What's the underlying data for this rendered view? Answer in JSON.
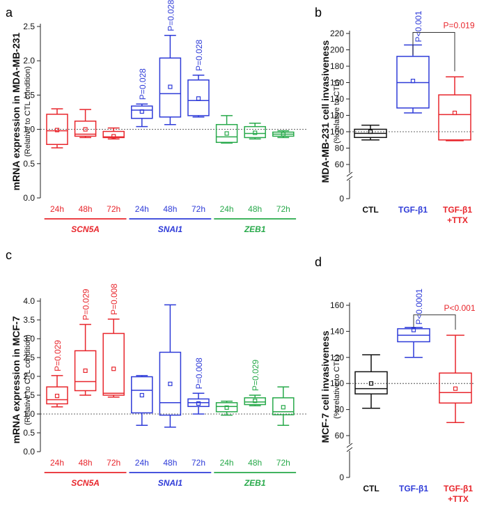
{
  "colors": {
    "red": "#e8262c",
    "blue": "#2e3bd8",
    "green": "#27a94a",
    "black": "#111111",
    "axis": "#222222"
  },
  "chart_data": [
    {
      "panel": "a",
      "type": "box",
      "ylabel": "mRNA expression in MDA-MB-231",
      "ylabel_sub": "(Relative to CTL condition)",
      "ylim": [
        0,
        2.5
      ],
      "yticks": [
        "0.0",
        "0.5",
        "1.0",
        "1.5",
        "2.0",
        "2.5"
      ],
      "ref_line": 1.0,
      "categories": [
        "24h",
        "48h",
        "72h",
        "24h",
        "48h",
        "72h",
        "24h",
        "48h",
        "72h"
      ],
      "groups": [
        {
          "name": "SCN5A",
          "color": "red"
        },
        {
          "name": "SNAI1",
          "color": "blue"
        },
        {
          "name": "ZEB1",
          "color": "green"
        }
      ],
      "boxes": [
        {
          "group": 0,
          "min": 0.73,
          "q1": 0.78,
          "median": 0.98,
          "q3": 1.22,
          "max": 1.3,
          "mean": 0.99
        },
        {
          "group": 0,
          "min": 0.88,
          "q1": 0.9,
          "median": 0.93,
          "q3": 1.12,
          "max": 1.29,
          "mean": 1.0
        },
        {
          "group": 0,
          "min": 0.86,
          "q1": 0.88,
          "median": 0.89,
          "q3": 0.97,
          "max": 1.02,
          "mean": 0.9
        },
        {
          "group": 1,
          "min": 1.04,
          "q1": 1.16,
          "median": 1.28,
          "q3": 1.34,
          "max": 1.37,
          "mean": 1.26,
          "p": "P=0.028"
        },
        {
          "group": 1,
          "min": 1.07,
          "q1": 1.18,
          "median": 1.52,
          "q3": 2.04,
          "max": 2.37,
          "mean": 1.62,
          "p": "P=0.028"
        },
        {
          "group": 1,
          "min": 1.18,
          "q1": 1.2,
          "median": 1.42,
          "q3": 1.72,
          "max": 1.79,
          "mean": 1.45,
          "p": "P=0.028"
        },
        {
          "group": 2,
          "min": 0.8,
          "q1": 0.81,
          "median": 0.89,
          "q3": 1.07,
          "max": 1.2,
          "mean": 0.94
        },
        {
          "group": 2,
          "min": 0.86,
          "q1": 0.88,
          "median": 0.94,
          "q3": 1.04,
          "max": 1.09,
          "mean": 0.95
        },
        {
          "group": 2,
          "min": 0.88,
          "q1": 0.9,
          "median": 0.93,
          "q3": 0.96,
          "max": 0.98,
          "mean": 0.93
        }
      ]
    },
    {
      "panel": "b",
      "type": "box",
      "ylabel": "MDA-MB-231 cell invasiveness",
      "ylabel_sub": "(% relative to CTL)",
      "yticks_upper": [
        "60",
        "80",
        "100",
        "120",
        "140",
        "160",
        "180",
        "200",
        "220"
      ],
      "ytick_zero": "0",
      "ref_line": 100,
      "categories": [
        "CTL",
        "TGF-β1",
        "TGF-β1",
        "+TTX"
      ],
      "boxes": [
        {
          "color": "black",
          "min": 90,
          "q1": 93,
          "median": 98,
          "q3": 103,
          "max": 108,
          "mean": 100
        },
        {
          "color": "blue",
          "min": 123,
          "q1": 129,
          "median": 160,
          "q3": 192,
          "max": 206,
          "mean": 162,
          "p": "P<0.001"
        },
        {
          "color": "red",
          "min": 89,
          "q1": 90,
          "median": 121,
          "q3": 145,
          "max": 167,
          "mean": 123
        }
      ],
      "bracket_label": "P=0.019"
    },
    {
      "panel": "c",
      "type": "box",
      "ylabel": "mRNA expression in MCF-7",
      "ylabel_sub": "(Relative to CTL condition)",
      "ylim": [
        0,
        4
      ],
      "yticks": [
        "0.0",
        "0.5",
        "1.0",
        "1.5",
        "2.0",
        "2.5",
        "3.0",
        "3.5",
        "4.0"
      ],
      "ref_line": 1.0,
      "categories": [
        "24h",
        "48h",
        "72h",
        "24h",
        "48h",
        "72h",
        "24h",
        "48h",
        "72h"
      ],
      "groups": [
        {
          "name": "SCN5A",
          "color": "red"
        },
        {
          "name": "SNAI1",
          "color": "blue"
        },
        {
          "name": "ZEB1",
          "color": "green"
        }
      ],
      "boxes": [
        {
          "group": 0,
          "min": 1.19,
          "q1": 1.27,
          "median": 1.38,
          "q3": 1.72,
          "max": 2.02,
          "mean": 1.48,
          "p": "P=0.029"
        },
        {
          "group": 0,
          "min": 1.5,
          "q1": 1.62,
          "median": 1.86,
          "q3": 2.68,
          "max": 3.38,
          "mean": 2.15,
          "p": "P=0.029"
        },
        {
          "group": 0,
          "min": 1.45,
          "q1": 1.5,
          "median": 1.55,
          "q3": 3.14,
          "max": 3.52,
          "mean": 2.2,
          "p": "P=0.008"
        },
        {
          "group": 1,
          "min": 0.7,
          "q1": 1.03,
          "median": 1.63,
          "q3": 1.99,
          "max": 2.02,
          "mean": 1.5
        },
        {
          "group": 1,
          "min": 0.65,
          "q1": 0.97,
          "median": 1.3,
          "q3": 2.64,
          "max": 3.9,
          "mean": 1.8
        },
        {
          "group": 1,
          "min": 1.0,
          "q1": 1.2,
          "median": 1.3,
          "q3": 1.4,
          "max": 1.55,
          "mean": 1.28,
          "p": "P=0.008"
        },
        {
          "group": 2,
          "min": 0.97,
          "q1": 1.06,
          "median": 1.2,
          "q3": 1.3,
          "max": 1.34,
          "mean": 1.17
        },
        {
          "group": 2,
          "min": 1.22,
          "q1": 1.25,
          "median": 1.32,
          "q3": 1.43,
          "max": 1.5,
          "mean": 1.35,
          "p": "P=0.029"
        },
        {
          "group": 2,
          "min": 0.7,
          "q1": 0.98,
          "median": 1.06,
          "q3": 1.43,
          "max": 1.72,
          "mean": 1.18
        }
      ]
    },
    {
      "panel": "d",
      "type": "box",
      "ylabel": "MCF-7 cell invasiveness",
      "ylabel_sub": "(% relative to CTL)",
      "yticks_upper": [
        "60",
        "80",
        "100",
        "120",
        "140",
        "160"
      ],
      "ytick_zero": "0",
      "ref_line": 100,
      "categories": [
        "CTL",
        "TGF-β1",
        "TGF-β1",
        "+TTX"
      ],
      "boxes": [
        {
          "color": "black",
          "min": 81,
          "q1": 92,
          "median": 96,
          "q3": 109,
          "max": 122,
          "mean": 100
        },
        {
          "color": "blue",
          "min": 120,
          "q1": 132,
          "median": 137,
          "q3": 142,
          "max": 143,
          "mean": 141,
          "p": "P<0.0001"
        },
        {
          "color": "red",
          "min": 70,
          "q1": 85,
          "median": 93,
          "q3": 108,
          "max": 137,
          "mean": 96
        }
      ],
      "bracket_label": "P<0.001"
    }
  ]
}
